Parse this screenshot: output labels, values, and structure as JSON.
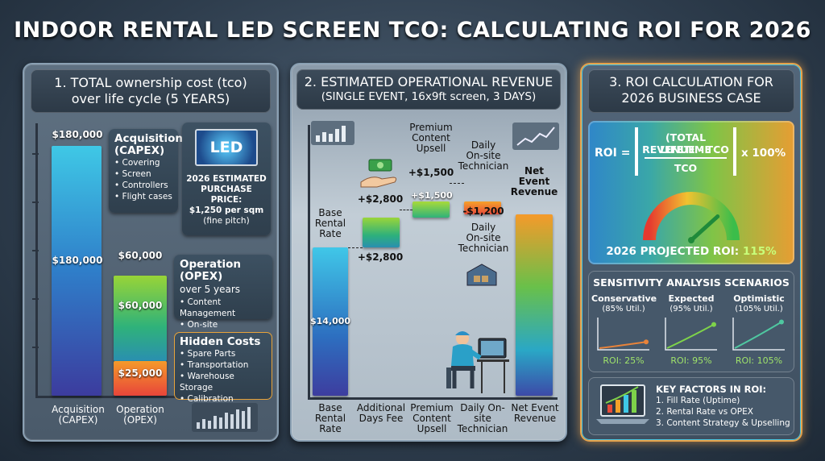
{
  "title": "INDOOR RENTAL LED SCREEN TCO: CALCULATING ROI FOR 2026",
  "panel1": {
    "header": "1. TOTAL ownership cost (tco)\nover life cycle (5 YEARS)",
    "capex_callout": {
      "title": "Acquisition\n(CAPEX)",
      "items": [
        "Covering",
        "Screen",
        "Controllers",
        "Flight cases"
      ]
    },
    "opex_callout": {
      "title": "Operation (OPEX)",
      "subtitle": "over 5 years",
      "items": [
        "Content Management",
        "On-site Technicians"
      ]
    },
    "hidden_callout": {
      "title": "Hidden Costs",
      "items": [
        "Spare Parts",
        "Transportation",
        "Warehouse Storage",
        "Calibration"
      ]
    },
    "price_box": {
      "led": "LED",
      "line1": "2026 ESTIMATED",
      "line2": "PURCHASE PRICE:",
      "line3": "$1,250 per sqm",
      "line4": "(fine pitch)"
    },
    "top_labels": {
      "capex": "$180,000",
      "opex": "$60,000"
    }
  },
  "panel2": {
    "header": "2. ESTIMATED OPERATIONAL REVENUE",
    "subheader": "(SINGLE EVENT, 16x9ft screen, 3 DAYS)",
    "top_labels": {
      "base": "Base\nRental\nRate",
      "additional_above": "+$2,800",
      "additional_below": "+$2,800",
      "premium_title": "Premium\nContent\nUpsell",
      "premium_above": "+$1,500",
      "premium_inside": "+$1,500",
      "daily_title": "Daily\nOn-site\nTechnician",
      "daily_value": "-$1,200",
      "daily_title2": "Daily\nOn-site\nTechnician",
      "net_title": "Net\nEvent\nRevenue",
      "base_value": "$14,000"
    }
  },
  "panel3": {
    "header": "3. ROI CALCULATION FOR\n2026 BUSINESS CASE",
    "formula": {
      "lhs": "ROI =",
      "num1": "(TOTAL LIFETIME",
      "num2": "REVENUE - TCO",
      "den": "TCO",
      "mult": "x 100%"
    },
    "projected_label": "2026 PROJECTED ROI:",
    "projected_value": "115%",
    "sensitivity_title": "SENSITIVITY ANALYSIS SCENARIOS",
    "scenarios": [
      {
        "name": "Conservative",
        "util": "(85% Util.)",
        "roi": "ROI: 25%"
      },
      {
        "name": "Expected",
        "util": "(95% Util.)",
        "roi": "ROI: 95%"
      },
      {
        "name": "Optimistic",
        "util": "(105% Util.)",
        "roi": "ROI: 105%"
      }
    ],
    "key_factors_title": "KEY FACTORS IN ROI:",
    "key_factors": [
      "1. Fill Rate (Uptime)",
      "2. Rental Rate vs OPEX",
      "3. Content Strategy & Upselling"
    ]
  },
  "chart_data": [
    {
      "type": "bar",
      "title": "1. TOTAL ownership cost (tco) over life cycle (5 YEARS)",
      "categories": [
        "Acquisition (CAPEX)",
        "Operation (OPEX)"
      ],
      "series": [
        {
          "name": "Acquisition (CAPEX)",
          "values": [
            180000,
            0
          ]
        },
        {
          "name": "Operation (OPEX)",
          "values": [
            0,
            60000
          ]
        },
        {
          "name": "Hidden Costs",
          "values": [
            0,
            25000
          ]
        }
      ],
      "data_labels": [
        "$180,000",
        "$60,000",
        "$25,000"
      ]
    },
    {
      "type": "bar",
      "title": "2. ESTIMATED OPERATIONAL REVENUE",
      "categories": [
        "Base Rental Rate",
        "Additional Days Fee",
        "Premium Content Upsell",
        "Daily On-site Technician",
        "Net Event Revenue"
      ],
      "values": [
        14000,
        2800,
        1500,
        -1200,
        17100
      ],
      "data_labels": [
        "$14,000",
        "+$2,800",
        "+$1,500",
        "-$1,200",
        ""
      ]
    },
    {
      "type": "gauge",
      "title": "2026 PROJECTED ROI",
      "value": 115,
      "unit": "%"
    },
    {
      "type": "line",
      "title": "SENSITIVITY ANALYSIS SCENARIOS",
      "categories": [
        "Conservative",
        "Expected",
        "Optimistic"
      ],
      "values": [
        25,
        95,
        105
      ],
      "unit": "%"
    }
  ]
}
